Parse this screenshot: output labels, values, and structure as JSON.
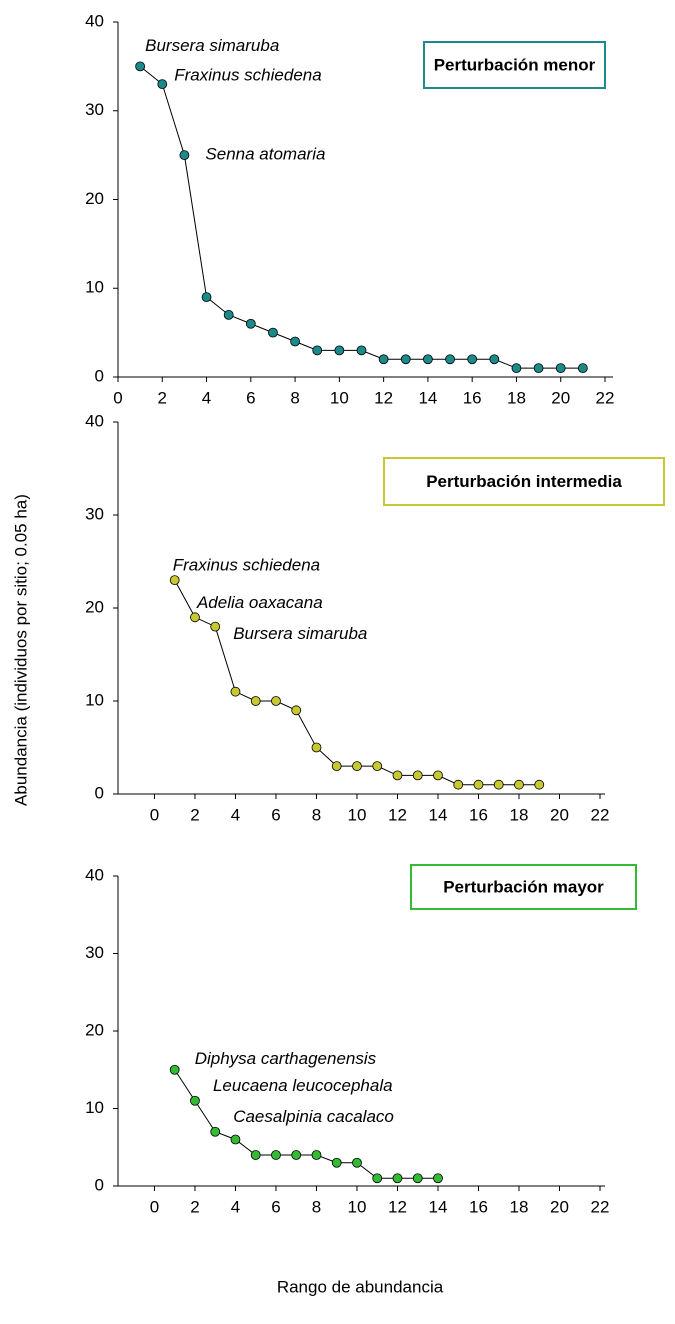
{
  "chart_data": [
    {
      "type": "line",
      "x": [
        1,
        2,
        3,
        4,
        5,
        6,
        7,
        8,
        9,
        10,
        11,
        12,
        13,
        14,
        15,
        16,
        17,
        18,
        19,
        20,
        21
      ],
      "series": [
        {
          "name": "Perturbación menor",
          "color": "#1a8a8a",
          "values": [
            35,
            33,
            25,
            9,
            7,
            6,
            5,
            4,
            3,
            3,
            3,
            2,
            2,
            2,
            2,
            2,
            2,
            1,
            1,
            1,
            1
          ]
        }
      ],
      "annotations": [
        "Bursera simaruba",
        "Fraxinus schiedena",
        "Senna atomaria"
      ],
      "xlim": [
        0,
        22
      ],
      "xticks": [
        0,
        2,
        4,
        6,
        8,
        10,
        12,
        14,
        16,
        18,
        20,
        22
      ],
      "ylim": [
        0,
        40
      ],
      "yticks": [
        0,
        10,
        20,
        30,
        40
      ]
    },
    {
      "type": "line",
      "ylabel": "Abundancia (individuos por sitio; 0.05 ha)",
      "x": [
        1,
        2,
        3,
        4,
        5,
        6,
        7,
        8,
        9,
        10,
        11,
        12,
        13,
        14,
        15,
        16,
        17,
        18,
        19
      ],
      "series": [
        {
          "name": "Perturbación intermedia",
          "color": "#c8c832",
          "values": [
            23,
            19,
            18,
            11,
            10,
            10,
            9,
            5,
            3,
            3,
            3,
            2,
            2,
            2,
            1,
            1,
            1,
            1,
            1
          ]
        }
      ],
      "annotations": [
        "Fraxinus schiedena",
        "Adelia oaxacana",
        "Bursera simaruba"
      ],
      "xlim": [
        -1.8,
        22
      ],
      "xticks": [
        0,
        2,
        4,
        6,
        8,
        10,
        12,
        14,
        16,
        18,
        20,
        22
      ],
      "ylim": [
        0,
        40
      ],
      "yticks": [
        0,
        10,
        20,
        30,
        40
      ]
    },
    {
      "type": "line",
      "xlabel": "Rango de abundancia",
      "x": [
        1,
        2,
        3,
        4,
        5,
        6,
        7,
        8,
        9,
        10,
        11,
        12,
        13,
        14
      ],
      "series": [
        {
          "name": "Perturbación mayor",
          "color": "#33bb33",
          "values": [
            15,
            11,
            7,
            6,
            4,
            4,
            4,
            4,
            3,
            3,
            1,
            1,
            1,
            1
          ]
        }
      ],
      "annotations": [
        "Diphysa carthagenensis",
        "Leucaena leucocephala",
        "Caesalpinia cacalaco"
      ],
      "xlim": [
        -1.8,
        22
      ],
      "xticks": [
        0,
        2,
        4,
        6,
        8,
        10,
        12,
        14,
        16,
        18,
        20,
        22
      ],
      "ylim": [
        0,
        40
      ],
      "yticks": [
        0,
        10,
        20,
        30,
        40
      ]
    }
  ]
}
